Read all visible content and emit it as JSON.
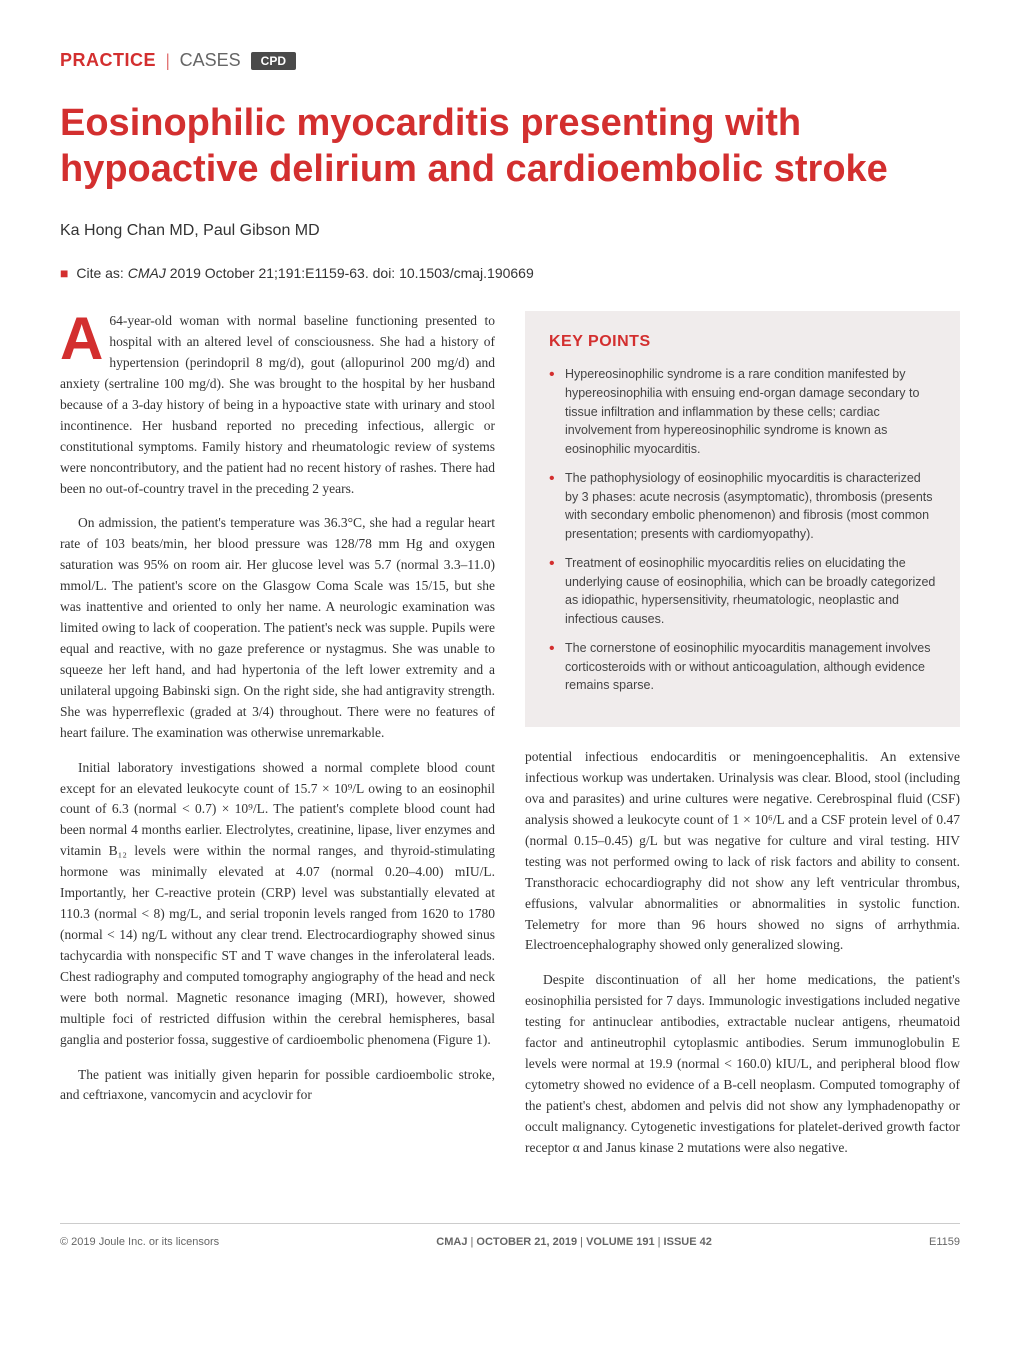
{
  "header": {
    "practice": "PRACTICE",
    "cases": "CASES",
    "cpd": "CPD"
  },
  "title": "Eosinophilic myocarditis presenting with hypoactive delirium and cardioembolic stroke",
  "authors": "Ka Hong Chan MD, Paul Gibson MD",
  "citation": {
    "prefix": "Cite as:",
    "journal": "CMAJ",
    "details": "2019 October 21;191:E1159-63. doi: 10.1503/cmaj.190669"
  },
  "body": {
    "p1": "64-year-old woman with normal baseline functioning presented to hospital with an altered level of consciousness. She had a history of hypertension (perindopril 8 mg/d), gout (allopurinol 200 mg/d) and anxiety (sertraline 100 mg/d). She was brought to the hospital by her husband because of a 3-day history of being in a hypoactive state with urinary and stool incontinence. Her husband reported no preceding infectious, allergic or constitutional symptoms. Family history and rheumatologic review of systems were noncontributory, and the patient had no recent history of rashes. There had been no out-of-country travel in the preceding 2 years.",
    "p2": "On admission, the patient's temperature was 36.3°C, she had a regular heart rate of 103 beats/min, her blood pressure was 128/78 mm Hg and oxygen saturation was 95% on room air. Her glucose level was 5.7 (normal 3.3–11.0) mmol/L. The patient's score on the Glasgow Coma Scale was 15/15, but she was inattentive and oriented to only her name. A neurologic examination was limited owing to lack of cooperation. The patient's neck was supple. Pupils were equal and reactive, with no gaze preference or nystagmus. She was unable to squeeze her left hand, and had hypertonia of the left lower extremity and a unilateral upgoing Babinski sign. On the right side, she had antigravity strength. She was hyperreflexic (graded at 3/4) throughout. There were no features of heart failure. The examination was otherwise unremarkable.",
    "p3": "Initial laboratory investigations showed a normal complete blood count except for an elevated leukocyte count of 15.7 × 10⁹/L owing to an eosinophil count of 6.3 (normal < 0.7) × 10⁹/L. The patient's complete blood count had been normal 4 months earlier. Electrolytes, creatinine, lipase, liver enzymes and vitamin B₁₂ levels were within the normal ranges, and thyroid-stimulating hormone was minimally elevated at 4.07 (normal 0.20–4.00) mIU/L. Importantly, her C-reactive protein (CRP) level was substantially elevated at 110.3 (normal < 8) mg/L, and serial troponin levels ranged from 1620 to 1780 (normal < 14) ng/L without any clear trend. Electrocardiography showed sinus tachycardia with nonspecific ST and T wave changes in the inferolateral leads. Chest radiography and computed tomography angiography of the head and neck were both normal. Magnetic resonance imaging (MRI), however, showed multiple foci of restricted diffusion within the cerebral hemispheres, basal ganglia and posterior fossa, suggestive of cardioembolic phenomena (Figure 1).",
    "p4": "The patient was initially given heparin for possible cardioembolic stroke, and ceftriaxone, vancomycin and acyclovir for",
    "p5": "potential infectious endocarditis or meningoencephalitis. An extensive infectious workup was undertaken. Urinalysis was clear. Blood, stool (including ova and parasites) and urine cultures were negative. Cerebrospinal fluid (CSF) analysis showed a leukocyte count of 1 × 10⁶/L and a CSF protein level of 0.47 (normal 0.15–0.45) g/L but was negative for culture and viral testing. HIV testing was not performed owing to lack of risk factors and ability to consent. Transthoracic echocardiography did not show any left ventricular thrombus, effusions, valvular abnormalities or abnormalities in systolic function. Telemetry for more than 96 hours showed no signs of arrhythmia. Electroencephalography showed only generalized slowing.",
    "p6": "Despite discontinuation of all her home medications, the patient's eosinophilia persisted for 7 days. Immunologic investigations included negative testing for antinuclear antibodies, extractable nuclear antigens, rheumatoid factor and antineutrophil cytoplasmic antibodies. Serum immunoglobulin E levels were normal at 19.9 (normal < 160.0) kIU/L, and peripheral blood flow cytometry showed no evidence of a B-cell neoplasm. Computed tomography of the patient's chest, abdomen and pelvis did not show any lymphadenopathy or occult malignancy. Cytogenetic investigations for platelet-derived growth factor receptor α and Janus kinase 2 mutations were also negative."
  },
  "keypoints": {
    "title": "KEY POINTS",
    "items": [
      "Hypereosinophilic syndrome is a rare condition manifested by hypereosinophilia with ensuing end-organ damage secondary to tissue infiltration and inflammation by these cells; cardiac involvement from hypereosinophilic syndrome is known as eosinophilic myocarditis.",
      "The pathophysiology of eosinophilic myocarditis is characterized by 3 phases: acute necrosis (asymptomatic), thrombosis (presents with secondary embolic phenomenon) and fibrosis (most common presentation; presents with cardiomyopathy).",
      "Treatment of eosinophilic myocarditis relies on elucidating the underlying cause of eosinophilia, which can be broadly categorized as idiopathic, hypersensitivity, rheumatologic, neoplastic and infectious causes.",
      "The cornerstone of eosinophilic myocarditis management involves corticosteroids with or without anticoagulation, although evidence remains sparse."
    ]
  },
  "footer": {
    "copyright": "© 2019 Joule Inc. or its licensors",
    "center_journal": "CMAJ",
    "center_details": "OCTOBER 21, 2019",
    "center_volume": "VOLUME 191",
    "center_issue": "ISSUE 42",
    "page": "E1159"
  },
  "colors": {
    "accent_red": "#d32f2f",
    "text": "#333333",
    "keypoints_bg": "#f0ecec",
    "badge_bg": "#4a4a4a",
    "footer_border": "#cccccc"
  },
  "typography": {
    "title_fontsize": 38,
    "body_fontsize": 13.5,
    "keypoints_fontsize": 12.5,
    "footer_fontsize": 11
  }
}
